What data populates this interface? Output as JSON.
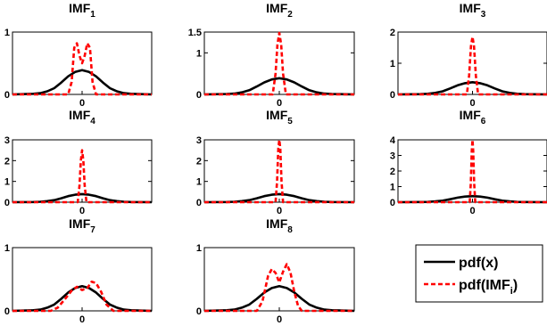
{
  "chart_data": {
    "type": "line",
    "legend": {
      "placement": "bottom-right",
      "entries": [
        {
          "label": "pdf(x)",
          "color": "#000000",
          "style": "solid"
        },
        {
          "prefix": "pdf(IMF",
          "sub": "i",
          "suffix": ")",
          "color": "#ff0000",
          "style": "dashed"
        }
      ]
    },
    "xlim": [
      -4,
      4
    ],
    "x_ticks": [
      {
        "value": 0,
        "label": "0"
      }
    ],
    "charts": [
      {
        "base": "IMF",
        "sub": "1",
        "ylim": [
          0,
          1
        ],
        "y_ticks": [
          {
            "value": 0,
            "label": "0"
          },
          {
            "value": 1,
            "label": "1"
          }
        ],
        "series": [
          {
            "name": "pdf(x)",
            "x": [
              -2.8,
              -2.4,
              -2.0,
              -1.6,
              -1.2,
              -0.8,
              -0.4,
              0.0,
              0.4,
              0.8,
              1.2,
              1.6,
              2.0,
              2.4,
              2.8
            ],
            "y": [
              0.01,
              0.02,
              0.05,
              0.1,
              0.19,
              0.29,
              0.36,
              0.39,
              0.36,
              0.29,
              0.19,
              0.1,
              0.05,
              0.02,
              0.01
            ]
          },
          {
            "name": "pdf(IMF_i)",
            "x": [
              -0.8,
              -0.6,
              -0.45,
              -0.3,
              -0.15,
              0.0,
              0.15,
              0.3,
              0.45,
              0.6,
              0.8
            ],
            "y": [
              0.0,
              0.2,
              0.75,
              0.82,
              0.62,
              0.5,
              0.62,
              0.82,
              0.75,
              0.2,
              0.0
            ]
          }
        ]
      },
      {
        "base": "IMF",
        "sub": "2",
        "ylim": [
          0,
          1.5
        ],
        "y_ticks": [
          {
            "value": 0,
            "label": "0"
          },
          {
            "value": 1,
            "label": "1"
          },
          {
            "value": 1.5,
            "label": "1.5"
          }
        ],
        "series": [
          {
            "name": "pdf(x)",
            "x": [
              -2.8,
              -2.4,
              -2.0,
              -1.6,
              -1.2,
              -0.8,
              -0.4,
              0.0,
              0.4,
              0.8,
              1.2,
              1.6,
              2.0,
              2.4,
              2.8
            ],
            "y": [
              0.01,
              0.02,
              0.05,
              0.1,
              0.19,
              0.29,
              0.36,
              0.39,
              0.36,
              0.29,
              0.19,
              0.1,
              0.05,
              0.02,
              0.01
            ]
          },
          {
            "name": "pdf(IMF_i)",
            "x": [
              -0.35,
              -0.2,
              -0.1,
              0.0,
              0.1,
              0.2,
              0.35
            ],
            "y": [
              0.0,
              0.5,
              1.2,
              1.48,
              1.2,
              0.5,
              0.0
            ]
          }
        ]
      },
      {
        "base": "IMF",
        "sub": "3",
        "ylim": [
          0,
          2
        ],
        "y_ticks": [
          {
            "value": 0,
            "label": "0"
          },
          {
            "value": 1,
            "label": "1"
          },
          {
            "value": 2,
            "label": "2"
          }
        ],
        "series": [
          {
            "name": "pdf(x)",
            "x": [
              -2.8,
              -2.4,
              -2.0,
              -1.6,
              -1.2,
              -0.8,
              -0.4,
              0.0,
              0.4,
              0.8,
              1.2,
              1.6,
              2.0,
              2.4,
              2.8
            ],
            "y": [
              0.01,
              0.02,
              0.05,
              0.1,
              0.19,
              0.29,
              0.36,
              0.39,
              0.36,
              0.29,
              0.19,
              0.1,
              0.05,
              0.02,
              0.01
            ]
          },
          {
            "name": "pdf(IMF_i)",
            "x": [
              -0.3,
              -0.18,
              -0.08,
              0.0,
              0.08,
              0.18,
              0.3
            ],
            "y": [
              0.0,
              0.6,
              1.55,
              1.85,
              1.55,
              0.6,
              0.0
            ]
          }
        ]
      },
      {
        "base": "IMF",
        "sub": "4",
        "ylim": [
          0,
          3
        ],
        "y_ticks": [
          {
            "value": 0,
            "label": "0"
          },
          {
            "value": 1,
            "label": "1"
          },
          {
            "value": 2,
            "label": "2"
          },
          {
            "value": 3,
            "label": "3"
          }
        ],
        "series": [
          {
            "name": "pdf(x)",
            "x": [
              -2.8,
              -2.4,
              -2.0,
              -1.6,
              -1.2,
              -0.8,
              -0.4,
              0.0,
              0.4,
              0.8,
              1.2,
              1.6,
              2.0,
              2.4,
              2.8
            ],
            "y": [
              0.01,
              0.02,
              0.05,
              0.1,
              0.19,
              0.29,
              0.36,
              0.39,
              0.36,
              0.29,
              0.19,
              0.1,
              0.05,
              0.02,
              0.01
            ]
          },
          {
            "name": "pdf(IMF_i)",
            "x": [
              -0.25,
              -0.15,
              -0.07,
              0.0,
              0.07,
              0.15,
              0.25
            ],
            "y": [
              0.0,
              0.8,
              2.0,
              2.5,
              2.0,
              0.8,
              0.0
            ]
          }
        ]
      },
      {
        "base": "IMF",
        "sub": "5",
        "ylim": [
          0,
          3
        ],
        "y_ticks": [
          {
            "value": 0,
            "label": "0"
          },
          {
            "value": 1,
            "label": "1"
          },
          {
            "value": 2,
            "label": "2"
          },
          {
            "value": 3,
            "label": "3"
          }
        ],
        "series": [
          {
            "name": "pdf(x)",
            "x": [
              -2.8,
              -2.4,
              -2.0,
              -1.6,
              -1.2,
              -0.8,
              -0.4,
              0.0,
              0.4,
              0.8,
              1.2,
              1.6,
              2.0,
              2.4,
              2.8
            ],
            "y": [
              0.01,
              0.02,
              0.05,
              0.1,
              0.19,
              0.29,
              0.36,
              0.39,
              0.36,
              0.29,
              0.19,
              0.1,
              0.05,
              0.02,
              0.01
            ]
          },
          {
            "name": "pdf(IMF_i)",
            "x": [
              -0.2,
              -0.12,
              -0.05,
              0.0,
              0.05,
              0.12,
              0.2
            ],
            "y": [
              0.0,
              1.0,
              2.6,
              3.0,
              2.6,
              1.0,
              0.0
            ]
          }
        ]
      },
      {
        "base": "IMF",
        "sub": "6",
        "ylim": [
          0,
          4
        ],
        "y_ticks": [
          {
            "value": 0,
            "label": "0"
          },
          {
            "value": 1,
            "label": "1"
          },
          {
            "value": 2,
            "label": "2"
          },
          {
            "value": 3,
            "label": "3"
          },
          {
            "value": 4,
            "label": "4"
          }
        ],
        "series": [
          {
            "name": "pdf(x)",
            "x": [
              -2.8,
              -2.4,
              -2.0,
              -1.6,
              -1.2,
              -0.8,
              -0.4,
              0.0,
              0.4,
              0.8,
              1.2,
              1.6,
              2.0,
              2.4,
              2.8
            ],
            "y": [
              0.01,
              0.02,
              0.05,
              0.1,
              0.19,
              0.29,
              0.36,
              0.39,
              0.36,
              0.29,
              0.19,
              0.1,
              0.05,
              0.02,
              0.01
            ]
          },
          {
            "name": "pdf(IMF_i)",
            "x": [
              -0.15,
              -0.09,
              -0.04,
              0.0,
              0.04,
              0.09,
              0.15
            ],
            "y": [
              0.0,
              1.2,
              3.3,
              4.0,
              3.3,
              1.2,
              0.0
            ]
          }
        ]
      },
      {
        "base": "IMF",
        "sub": "7",
        "ylim": [
          0,
          1
        ],
        "y_ticks": [
          {
            "value": 0,
            "label": "0"
          },
          {
            "value": 1,
            "label": "1"
          }
        ],
        "series": [
          {
            "name": "pdf(x)",
            "x": [
              -2.8,
              -2.4,
              -2.0,
              -1.6,
              -1.2,
              -0.8,
              -0.4,
              0.0,
              0.4,
              0.8,
              1.2,
              1.6,
              2.0,
              2.4,
              2.8
            ],
            "y": [
              0.01,
              0.02,
              0.05,
              0.1,
              0.19,
              0.29,
              0.36,
              0.39,
              0.36,
              0.29,
              0.19,
              0.1,
              0.05,
              0.02,
              0.01
            ]
          },
          {
            "name": "pdf(IMF_i)",
            "x": [
              -1.8,
              -1.4,
              -1.0,
              -0.6,
              -0.3,
              0.0,
              0.3,
              0.55,
              0.8,
              1.1,
              1.4,
              1.8
            ],
            "y": [
              0.0,
              0.05,
              0.18,
              0.32,
              0.38,
              0.33,
              0.36,
              0.46,
              0.44,
              0.3,
              0.1,
              0.0
            ]
          }
        ]
      },
      {
        "base": "IMF",
        "sub": "8",
        "ylim": [
          0,
          1
        ],
        "y_ticks": [
          {
            "value": 0,
            "label": "0"
          },
          {
            "value": 1,
            "label": "1"
          }
        ],
        "series": [
          {
            "name": "pdf(x)",
            "x": [
              -2.8,
              -2.4,
              -2.0,
              -1.6,
              -1.2,
              -0.8,
              -0.4,
              0.0,
              0.4,
              0.8,
              1.2,
              1.6,
              2.0,
              2.4,
              2.8
            ],
            "y": [
              0.01,
              0.02,
              0.05,
              0.1,
              0.19,
              0.29,
              0.36,
              0.39,
              0.36,
              0.29,
              0.19,
              0.1,
              0.05,
              0.02,
              0.01
            ]
          },
          {
            "name": "pdf(IMF_i)",
            "x": [
              -1.2,
              -0.9,
              -0.6,
              -0.4,
              -0.2,
              0.0,
              0.2,
              0.4,
              0.6,
              0.8,
              1.0,
              1.2
            ],
            "y": [
              0.0,
              0.15,
              0.55,
              0.66,
              0.6,
              0.45,
              0.62,
              0.74,
              0.6,
              0.3,
              0.08,
              0.0
            ]
          }
        ]
      }
    ]
  }
}
